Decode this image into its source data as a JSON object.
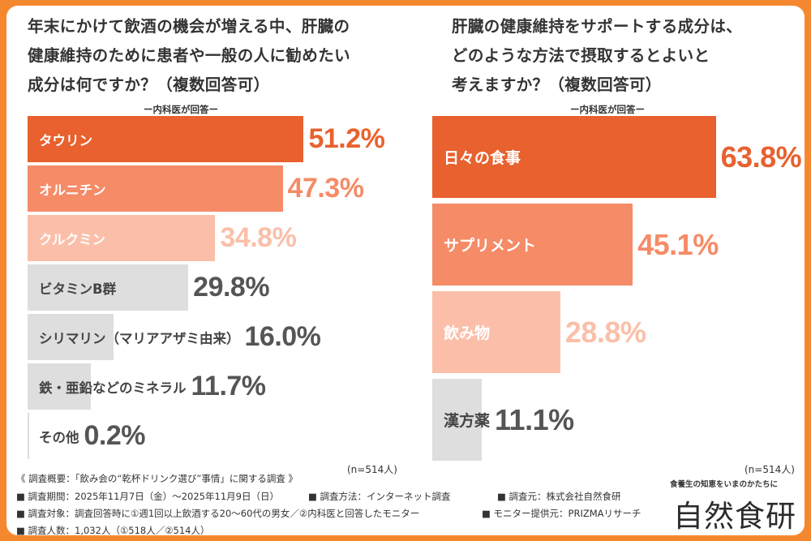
{
  "left": {
    "title_lines": [
      "年末にかけて飲酒の機会が増える中、肝臓の",
      "健康維持のために患者や一般の人に勧めたい",
      "成分は何ですか？（複数回答可）"
    ],
    "subhead": "ー内科医が回答ー",
    "n": "(n=514人)"
  },
  "right": {
    "title_lines": [
      "肝臓の健康維持をサポートする成分は、",
      "どのような方法で摂取するとよいと",
      "考えますか？（複数回答可）"
    ],
    "subhead": "ー内科医が回答ー",
    "n": "(n=514人)"
  },
  "chart_data": [
    {
      "type": "bar",
      "orientation": "horizontal",
      "categories": [
        "タウリン",
        "オルニチン",
        "クルクミン",
        "ビタミンB群",
        "シリマリン（マリアアザミ由来）",
        "鉄・亜鉛などのミネラル",
        "その他"
      ],
      "values": [
        51.2,
        47.3,
        34.8,
        29.8,
        16.0,
        11.7,
        0.2
      ],
      "value_labels": [
        "51.2%",
        "47.3%",
        "34.8%",
        "29.8%",
        "16.0%",
        "11.7%",
        "0.2%"
      ],
      "title": "年末にかけて飲酒の機会が増える中、肝臓の健康維持のために患者や一般の人に勧めたい成分は何ですか？（複数回答可）",
      "xlim": [
        0,
        100
      ],
      "colors": [
        "#e8612e",
        "#f58b67",
        "#fbbfa9",
        "#dedede",
        "#dedede",
        "#dedede",
        "#dedede"
      ],
      "label_colors": [
        "#ffffff",
        "#ffffff",
        "#ffffff",
        "#444444",
        "#444444",
        "#444444",
        "#444444"
      ],
      "value_colors": [
        "#e8612e",
        "#f58b67",
        "#fbbfa9",
        "#555555",
        "#555555",
        "#555555",
        "#555555"
      ]
    },
    {
      "type": "bar",
      "orientation": "horizontal",
      "categories": [
        "日々の食事",
        "サプリメント",
        "飲み物",
        "漢方薬"
      ],
      "values": [
        63.8,
        45.1,
        28.8,
        11.1
      ],
      "value_labels": [
        "63.8%",
        "45.1%",
        "28.8%",
        "11.1%"
      ],
      "title": "肝臓の健康維持をサポートする成分は、どのような方法で摂取するとよいと考えますか？（複数回答可）",
      "xlim": [
        0,
        100
      ],
      "colors": [
        "#e8612e",
        "#f58b67",
        "#fbbfa9",
        "#dedede"
      ],
      "label_colors": [
        "#ffffff",
        "#ffffff",
        "#ffffff",
        "#444444"
      ],
      "value_colors": [
        "#e8612e",
        "#f58b67",
        "#fbbfa9",
        "#555555"
      ]
    }
  ],
  "footer": {
    "summary": "《 調査概要：「飲み会の“乾杯ドリンク選び”事情」に関する調査 》",
    "period": "■ 調査期間：2025年11月7日（金）〜2025年11月9日（日）",
    "method": "■ 調査方法：インターネット調査",
    "source": "■ 調査元：株式会社自然食研",
    "target": "■ 調査対象：調査回答時に①週1回以上飲酒する20〜60代の男女／②内科医と回答したモニター",
    "monitor": "■ モニター提供元：PRIZMAリサーチ",
    "count": "■ 調査人数：1,032人（①518人／②514人）"
  },
  "logo": {
    "tagline": "食養生の知恵をいまのかたちに",
    "name": "自然食研"
  }
}
